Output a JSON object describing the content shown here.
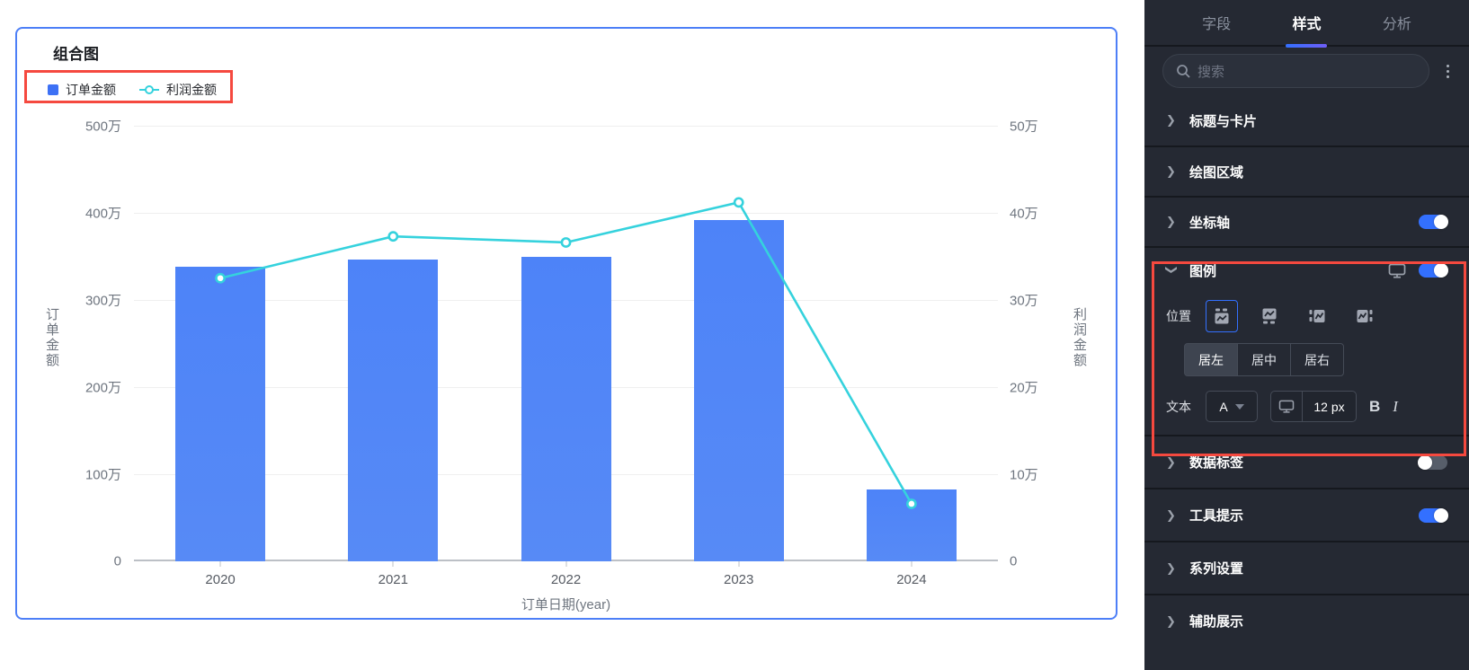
{
  "chart_card": {
    "title": "组合图",
    "legend": {
      "bar_label": "订单金额",
      "line_label": "利润金额"
    }
  },
  "chart_data": {
    "type": "bar+line combo",
    "categories": [
      "2020",
      "2021",
      "2022",
      "2023",
      "2024"
    ],
    "series": [
      {
        "name": "订单金额",
        "type": "bar",
        "axis": "left",
        "color": "#5286f7",
        "values_wan": [
          338,
          346,
          349,
          392,
          83
        ]
      },
      {
        "name": "利润金额",
        "type": "line",
        "axis": "right",
        "color": "#35d2dd",
        "values_wan": [
          32.5,
          37.3,
          36.6,
          41.2,
          6.6
        ]
      }
    ],
    "left_axis": {
      "title": "订单金额",
      "ticks": [
        "0",
        "100万",
        "200万",
        "300万",
        "400万",
        "500万"
      ],
      "min_wan": 0,
      "max_wan": 500
    },
    "right_axis": {
      "title": "利润金额",
      "ticks": [
        "0",
        "10万",
        "20万",
        "30万",
        "40万",
        "50万"
      ],
      "min_wan": 0,
      "max_wan": 50
    },
    "x_axis_title": "订单日期(year)",
    "grid": true,
    "legend_position": "top-left",
    "bar_color": "#5286f7",
    "legend_bar_color": "#3d71f5",
    "line_color": "#35d2dd"
  },
  "panel": {
    "tabs": [
      {
        "label": "字段",
        "active": false
      },
      {
        "label": "样式",
        "active": true
      },
      {
        "label": "分析",
        "active": false
      }
    ],
    "search": {
      "placeholder": "搜索",
      "icon": "search-icon",
      "menu_icon": "kebab-menu-icon"
    },
    "sections": [
      {
        "label": "标题与卡片",
        "chevron": "right"
      },
      {
        "label": "绘图区域",
        "chevron": "right"
      },
      {
        "label": "坐标轴",
        "chevron": "right",
        "toggle": "on"
      },
      {
        "label": "图例",
        "chevron": "down",
        "expanded": true,
        "monitor_icon": true,
        "toggle": "on"
      },
      {
        "label": "数据标签",
        "chevron": "right",
        "toggle": "off"
      },
      {
        "label": "工具提示",
        "chevron": "right",
        "toggle": "on"
      },
      {
        "label": "系列设置",
        "chevron": "right"
      },
      {
        "label": "辅助展示",
        "chevron": "right"
      }
    ],
    "legend_section": {
      "position_label": "位置",
      "position_options": [
        "legend-top",
        "legend-bottom",
        "legend-left",
        "legend-right"
      ],
      "position_selected": "legend-top",
      "alignment": [
        {
          "label": "居左",
          "selected": true
        },
        {
          "label": "居中",
          "selected": false
        },
        {
          "label": "居右",
          "selected": false
        }
      ],
      "text_label": "文本",
      "font_color_dropdown": "A",
      "font_size": "12 px",
      "bold_label": "B",
      "italic_label": "I"
    },
    "colors": {
      "accent": "#3370ff",
      "background": "#252933",
      "highlight": "#f5493f"
    }
  }
}
